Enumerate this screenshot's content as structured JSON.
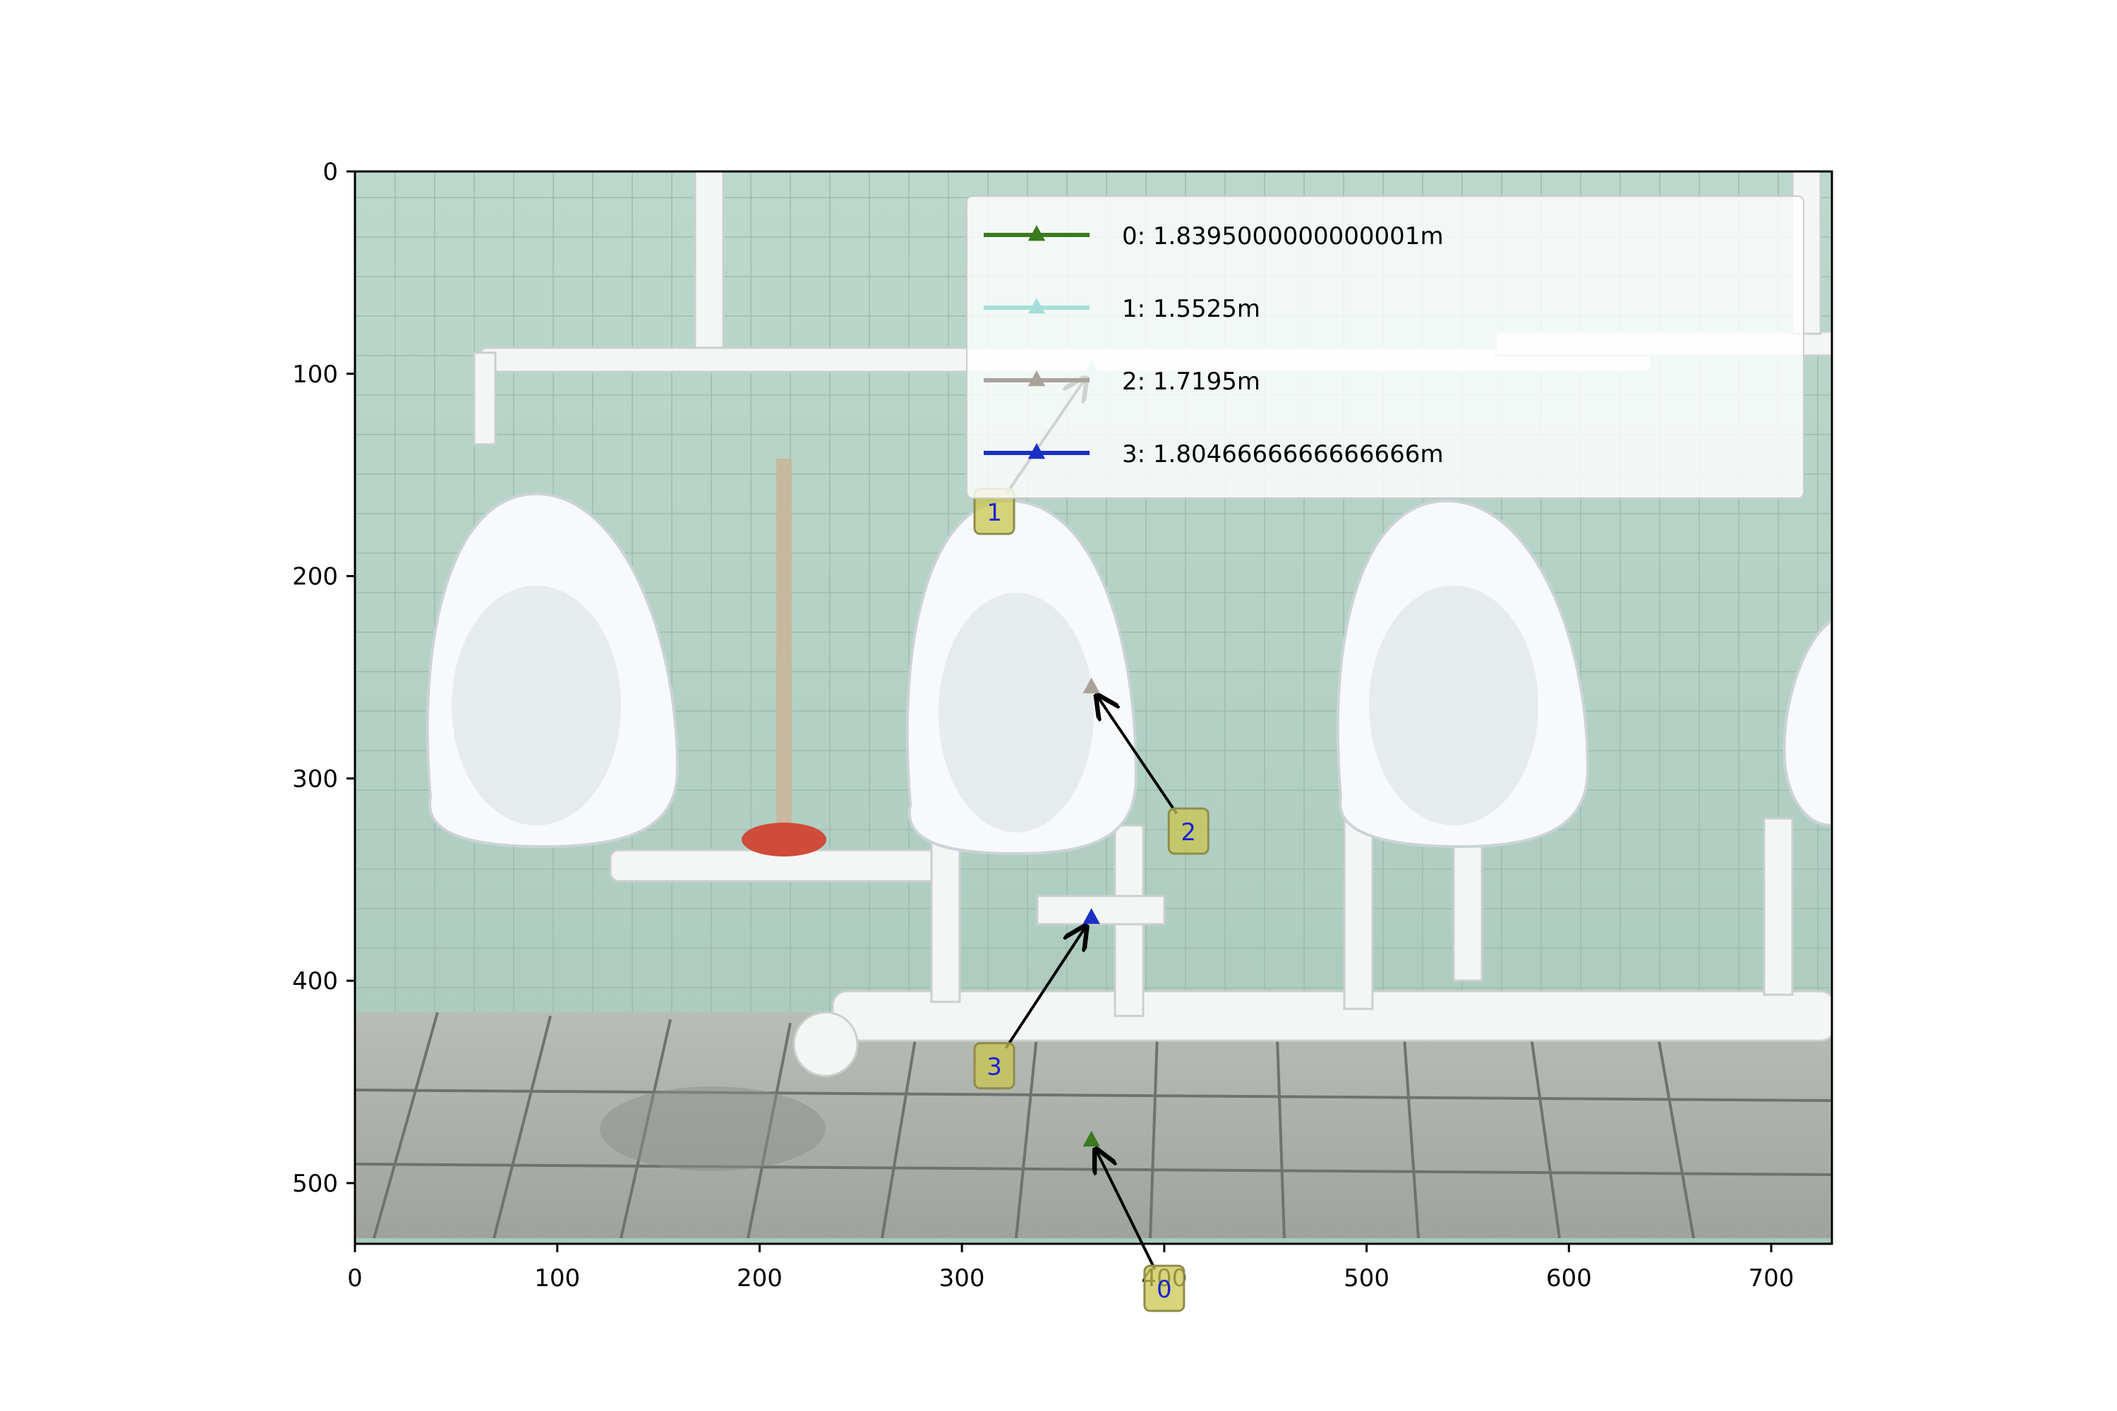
{
  "chart_data": {
    "type": "scatter",
    "title": "",
    "xlabel": "",
    "ylabel": "",
    "xlim": [
      0,
      730
    ],
    "ylim": [
      530,
      0
    ],
    "y_inverted": true,
    "grid": false,
    "legend_position": "top-right",
    "background_image": "photo of a restroom: three wall-mounted white urinals with white drain pipes, green tiled wall, grey tiled floor",
    "x_ticks": [
      0,
      100,
      200,
      300,
      400,
      500,
      600,
      700
    ],
    "y_ticks": [
      0,
      100,
      200,
      300,
      400,
      500
    ],
    "series": [
      {
        "name": "0: 1.8395000000000001m",
        "label": "0",
        "color": "#3b7a1f",
        "x": [
          364
        ],
        "y": [
          479
        ],
        "label_x": 400,
        "label_y": 552
      },
      {
        "name": "1: 1.5525m",
        "label": "1",
        "color": "#a5dfd9",
        "x": [
          364
        ],
        "y": [
          98
        ],
        "label_x": 316,
        "label_y": 168
      },
      {
        "name": "2: 1.7195m",
        "label": "2",
        "color": "#aaa39b",
        "x": [
          364
        ],
        "y": [
          255
        ],
        "label_x": 412,
        "label_y": 326
      },
      {
        "name": "3: 1.8046666666666666m",
        "label": "3",
        "color": "#1a2fc4",
        "x": [
          364
        ],
        "y": [
          369
        ],
        "label_x": 316,
        "label_y": 442
      }
    ]
  }
}
